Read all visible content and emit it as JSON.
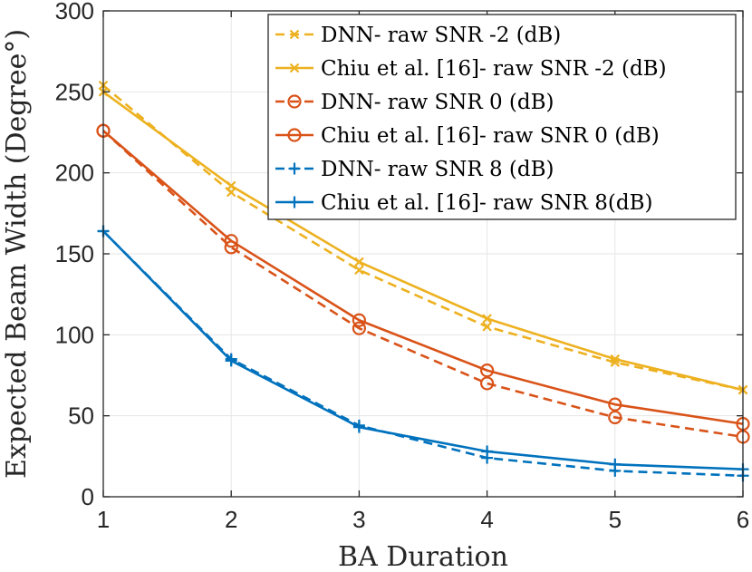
{
  "chart_data": {
    "type": "line",
    "title": "",
    "xlabel": "BA Duration",
    "ylabel": "Expected Beam Width (Degree°)",
    "xlim": [
      1,
      6
    ],
    "ylim": [
      0,
      300
    ],
    "xticks": [
      1,
      2,
      3,
      4,
      5,
      6
    ],
    "yticks": [
      0,
      50,
      100,
      150,
      200,
      250,
      300
    ],
    "grid": true,
    "legend_position": "top-right",
    "x": [
      1,
      2,
      3,
      4,
      5,
      6
    ],
    "series": [
      {
        "name": "DNN- raw SNR -2 (dB)",
        "color": "#EDB120",
        "dash": "dashed",
        "marker": "x",
        "values": [
          254,
          188,
          140,
          105,
          83,
          66
        ]
      },
      {
        "name": "Chiu et al. [16]- raw SNR -2 (dB)",
        "color": "#EDB120",
        "dash": "solid",
        "marker": "x",
        "values": [
          250,
          192,
          145,
          110,
          85,
          66
        ]
      },
      {
        "name": "DNN- raw SNR 0 (dB)",
        "color": "#D95319",
        "dash": "dashed",
        "marker": "o",
        "values": [
          226,
          154,
          104,
          70,
          49,
          37
        ]
      },
      {
        "name": "Chiu et al. [16]- raw SNR 0 (dB)",
        "color": "#D95319",
        "dash": "solid",
        "marker": "o",
        "values": [
          226,
          158,
          109,
          78,
          57,
          45
        ]
      },
      {
        "name": "DNN- raw SNR 8 (dB)",
        "color": "#0072BD",
        "dash": "dashed",
        "marker": "+",
        "values": [
          164,
          85,
          44,
          24,
          16,
          13
        ]
      },
      {
        "name": "Chiu et al. [16]- raw SNR 8(dB)",
        "color": "#0072BD",
        "dash": "solid",
        "marker": "+",
        "values": [
          164,
          84,
          43,
          28,
          20,
          17
        ]
      }
    ]
  }
}
